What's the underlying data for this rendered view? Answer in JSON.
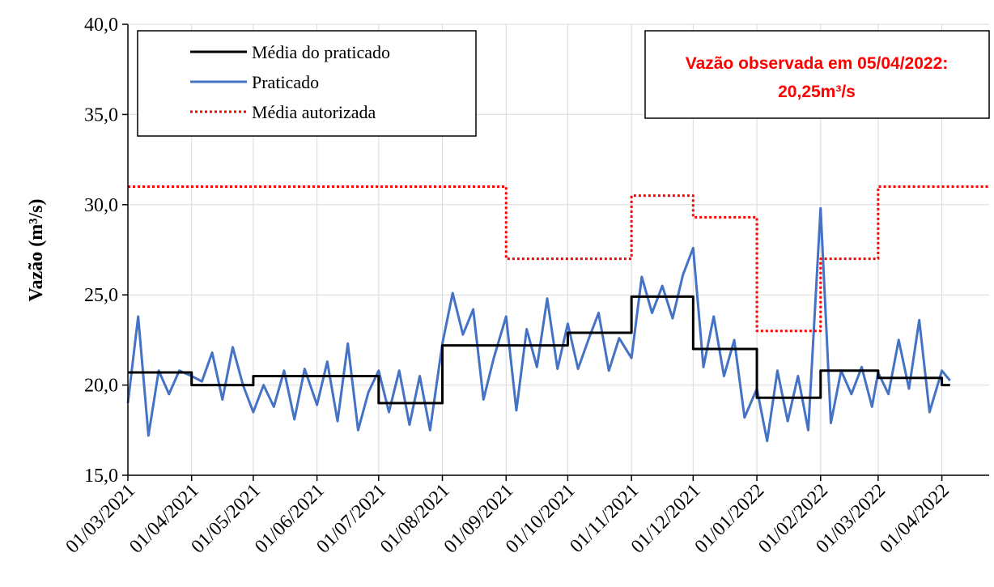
{
  "chart_data": {
    "type": "line",
    "y_label": "Vazão (m³/s)",
    "annotation": [
      "Vazão observada em 05/04/2022:",
      "20,25m³/s"
    ],
    "xlim": [
      "01/03/2021",
      "24/04/2022"
    ],
    "xticks": [
      "01/03/2021",
      "01/04/2021",
      "01/05/2021",
      "01/06/2021",
      "01/07/2021",
      "01/08/2021",
      "01/09/2021",
      "01/10/2021",
      "01/11/2021",
      "01/12/2021",
      "01/01/2022",
      "01/02/2022",
      "01/03/2022",
      "01/04/2022"
    ],
    "ylim": [
      15,
      40
    ],
    "yticks": [
      {
        "value": 15,
        "label": "15,0"
      },
      {
        "value": 20,
        "label": "20,0"
      },
      {
        "value": 25,
        "label": "25,0"
      },
      {
        "value": 30,
        "label": "30,0"
      },
      {
        "value": 35,
        "label": "35,0"
      },
      {
        "value": 40,
        "label": "40,0"
      }
    ],
    "grid": true,
    "legend": "top-left",
    "series": [
      {
        "name": "Média do praticado",
        "color": "#000000",
        "style": "solid",
        "x": [
          "01/03/2021",
          "01/04/2021",
          "01/04/2021",
          "01/05/2021",
          "01/05/2021",
          "01/07/2021",
          "01/07/2021",
          "01/08/2021",
          "01/08/2021",
          "01/10/2021",
          "01/10/2021",
          "01/11/2021",
          "01/11/2021",
          "01/12/2021",
          "01/12/2021",
          "01/01/2022",
          "01/01/2022",
          "01/02/2022",
          "01/02/2022",
          "01/03/2022",
          "01/03/2022",
          "01/04/2022",
          "01/04/2022",
          "05/04/2022"
        ],
        "values": [
          20.7,
          20.7,
          20.0,
          20.0,
          20.5,
          20.5,
          19.0,
          19.0,
          22.2,
          22.2,
          22.9,
          22.9,
          24.9,
          24.9,
          22.0,
          22.0,
          19.3,
          19.3,
          20.8,
          20.8,
          20.4,
          20.4,
          20.0,
          20.0
        ]
      },
      {
        "name": "Praticado",
        "color": "#4472c4",
        "style": "solid",
        "x": [
          "01/03/2021",
          "06/03/2021",
          "11/03/2021",
          "16/03/2021",
          "21/03/2021",
          "26/03/2021",
          "01/04/2021",
          "06/04/2021",
          "11/04/2021",
          "16/04/2021",
          "21/04/2021",
          "26/04/2021",
          "01/05/2021",
          "06/05/2021",
          "11/05/2021",
          "16/05/2021",
          "21/05/2021",
          "26/05/2021",
          "01/06/2021",
          "06/06/2021",
          "11/06/2021",
          "16/06/2021",
          "21/06/2021",
          "26/06/2021",
          "01/07/2021",
          "06/07/2021",
          "11/07/2021",
          "16/07/2021",
          "21/07/2021",
          "26/07/2021",
          "01/08/2021",
          "06/08/2021",
          "11/08/2021",
          "16/08/2021",
          "21/08/2021",
          "26/08/2021",
          "01/09/2021",
          "06/09/2021",
          "11/09/2021",
          "16/09/2021",
          "21/09/2021",
          "26/09/2021",
          "01/10/2021",
          "06/10/2021",
          "11/10/2021",
          "16/10/2021",
          "21/10/2021",
          "26/10/2021",
          "01/11/2021",
          "06/11/2021",
          "11/11/2021",
          "16/11/2021",
          "21/11/2021",
          "26/11/2021",
          "01/12/2021",
          "06/12/2021",
          "11/12/2021",
          "16/12/2021",
          "21/12/2021",
          "26/12/2021",
          "01/01/2022",
          "06/01/2022",
          "11/01/2022",
          "16/01/2022",
          "21/01/2022",
          "26/01/2022",
          "01/02/2022",
          "06/02/2022",
          "11/02/2022",
          "16/02/2022",
          "21/02/2022",
          "26/02/2022",
          "01/03/2022",
          "06/03/2022",
          "11/03/2022",
          "16/03/2022",
          "21/03/2022",
          "26/03/2022",
          "01/04/2022",
          "05/04/2022"
        ],
        "values": [
          19.0,
          23.8,
          17.2,
          20.8,
          19.5,
          20.8,
          20.5,
          20.2,
          21.8,
          19.2,
          22.1,
          20.0,
          18.5,
          20.0,
          18.8,
          20.8,
          18.1,
          20.9,
          18.9,
          21.3,
          18.0,
          22.3,
          17.5,
          19.6,
          20.8,
          18.5,
          20.8,
          17.8,
          20.5,
          17.5,
          22.3,
          25.1,
          22.8,
          24.2,
          19.2,
          21.5,
          23.8,
          18.6,
          23.1,
          21.0,
          24.8,
          20.9,
          23.4,
          20.9,
          22.5,
          24.0,
          20.8,
          22.6,
          21.5,
          26.0,
          24.0,
          25.5,
          23.7,
          26.1,
          27.6,
          21.0,
          23.8,
          20.5,
          22.5,
          18.2,
          19.8,
          16.9,
          20.8,
          18.0,
          20.5,
          17.5,
          29.8,
          17.9,
          20.8,
          19.5,
          21.0,
          18.8,
          20.7,
          19.5,
          22.5,
          19.8,
          23.6,
          18.5,
          20.8,
          20.25
        ]
      },
      {
        "name": "Média autorizada",
        "color": "#ff0000",
        "style": "dotted",
        "x": [
          "01/03/2021",
          "01/09/2021",
          "01/09/2021",
          "01/11/2021",
          "01/11/2021",
          "01/12/2021",
          "01/12/2021",
          "01/01/2022",
          "01/01/2022",
          "01/02/2022",
          "01/02/2022",
          "01/03/2022",
          "01/03/2022",
          "24/04/2022"
        ],
        "values": [
          31,
          31,
          27,
          27,
          30.5,
          30.5,
          29.3,
          29.3,
          23,
          23,
          27,
          27,
          31,
          31
        ]
      }
    ]
  }
}
